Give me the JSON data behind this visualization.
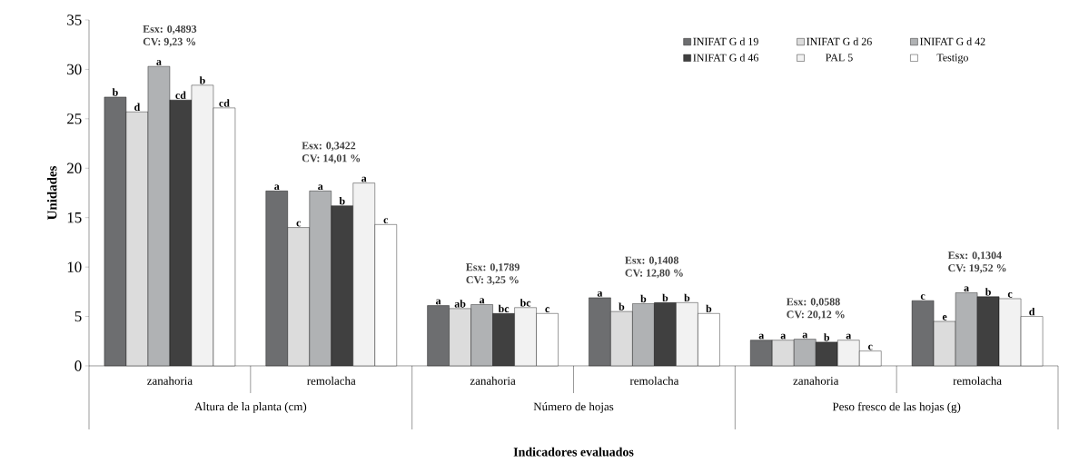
{
  "chart_data": {
    "type": "bar",
    "ylabel": "Unidades",
    "xlabel": "Indicadores  evaluados",
    "categories": [
      "zanahoria",
      "remolacha",
      "zanahoria",
      "remolacha",
      "zanahoria",
      "remolacha"
    ],
    "series": [
      {
        "name": "INIFAT G d 19",
        "color": "#6d6e70",
        "values": [
          27.2,
          17.7,
          6.1,
          6.9,
          2.6,
          6.6
        ],
        "value_labels": [
          "b",
          "a",
          "a",
          "a",
          "a",
          "c"
        ]
      },
      {
        "name": "INIFAT G d 26",
        "color": "#dcdcdc",
        "values": [
          25.7,
          14.0,
          5.8,
          5.5,
          2.6,
          4.5
        ],
        "value_labels": [
          "d",
          "c",
          "ab",
          "b",
          "a",
          "e"
        ]
      },
      {
        "name": "INIFAT G d 42",
        "color": "#b0b2b4",
        "values": [
          30.3,
          17.7,
          6.2,
          6.3,
          2.7,
          7.4
        ],
        "value_labels": [
          "a",
          "a",
          "a",
          "b",
          "a",
          "a"
        ]
      },
      {
        "name": "INIFAT G d 46",
        "color": "#404040",
        "values": [
          26.9,
          16.2,
          5.3,
          6.4,
          2.4,
          7.0
        ],
        "value_labels": [
          "cd",
          "b",
          "bc",
          "b",
          "b",
          "b"
        ]
      },
      {
        "name": "PAL 5",
        "color": "#f2f2f2",
        "values": [
          28.4,
          18.5,
          5.9,
          6.4,
          2.6,
          6.8
        ],
        "value_labels": [
          "b",
          "a",
          "bc",
          "b",
          "a",
          "c"
        ]
      },
      {
        "name": "Testigo",
        "color": "#ffffff",
        "values": [
          26.1,
          14.3,
          5.3,
          5.3,
          1.5,
          5.0
        ],
        "value_labels": [
          "cd",
          "c",
          "c",
          "b",
          "c",
          "d"
        ]
      }
    ],
    "ylim": [
      0,
      35
    ],
    "yticks": [
      0,
      5,
      10,
      15,
      20,
      25,
      30,
      35
    ],
    "grid": false,
    "legend": "top right",
    "annotations": [
      "Altura de la planta (cm)",
      "Número de hojas",
      "Peso fresco de las hojas (g)",
      "Esx:  0,4893",
      "CV:  9,23 %",
      "Esx:  0,3422",
      "CV:  14,01 %",
      "Esx:  0,1789",
      "CV:  3,25 %",
      "Esx:  0,1408",
      "CV:  12,80 %",
      "Esx:  0,0588",
      "CV:  20,12 %",
      "Esx:  0,1304",
      "CV:  19,52 %"
    ]
  }
}
